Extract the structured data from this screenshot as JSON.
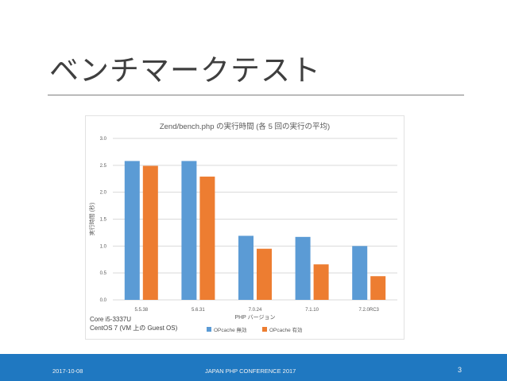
{
  "slide": {
    "title": "ベンチマークテスト"
  },
  "chart_data": {
    "type": "bar",
    "title": "Zend/bench.php の実行時間 (各 5 回の実行の平均)",
    "xlabel": "PHP バージョン",
    "ylabel": "実行時間 (秒)",
    "categories": [
      "5.5.38",
      "5.6.31",
      "7.0.24",
      "7.1.10",
      "7.2.0RC3"
    ],
    "series": [
      {
        "name": "OPcache 無効",
        "color": "#5b9bd5",
        "values": [
          2.58,
          2.58,
          1.19,
          1.17,
          1.0
        ]
      },
      {
        "name": "OPcache 有効",
        "color": "#ed7d31",
        "values": [
          2.49,
          2.29,
          0.95,
          0.66,
          0.44
        ]
      }
    ],
    "ylim": [
      0,
      3.0
    ],
    "yticks": [
      "0.0",
      "0.5",
      "1.0",
      "1.5",
      "2.0",
      "2.5",
      "3.0"
    ],
    "grid": true,
    "legend": "bottom",
    "annotation": [
      "Core i5-3337U",
      "CentOS 7 (VM 上の Guest OS)"
    ]
  },
  "footer": {
    "date": "2017-10-08",
    "event": "JAPAN PHP CONFERENCE 2017",
    "page": "3"
  }
}
